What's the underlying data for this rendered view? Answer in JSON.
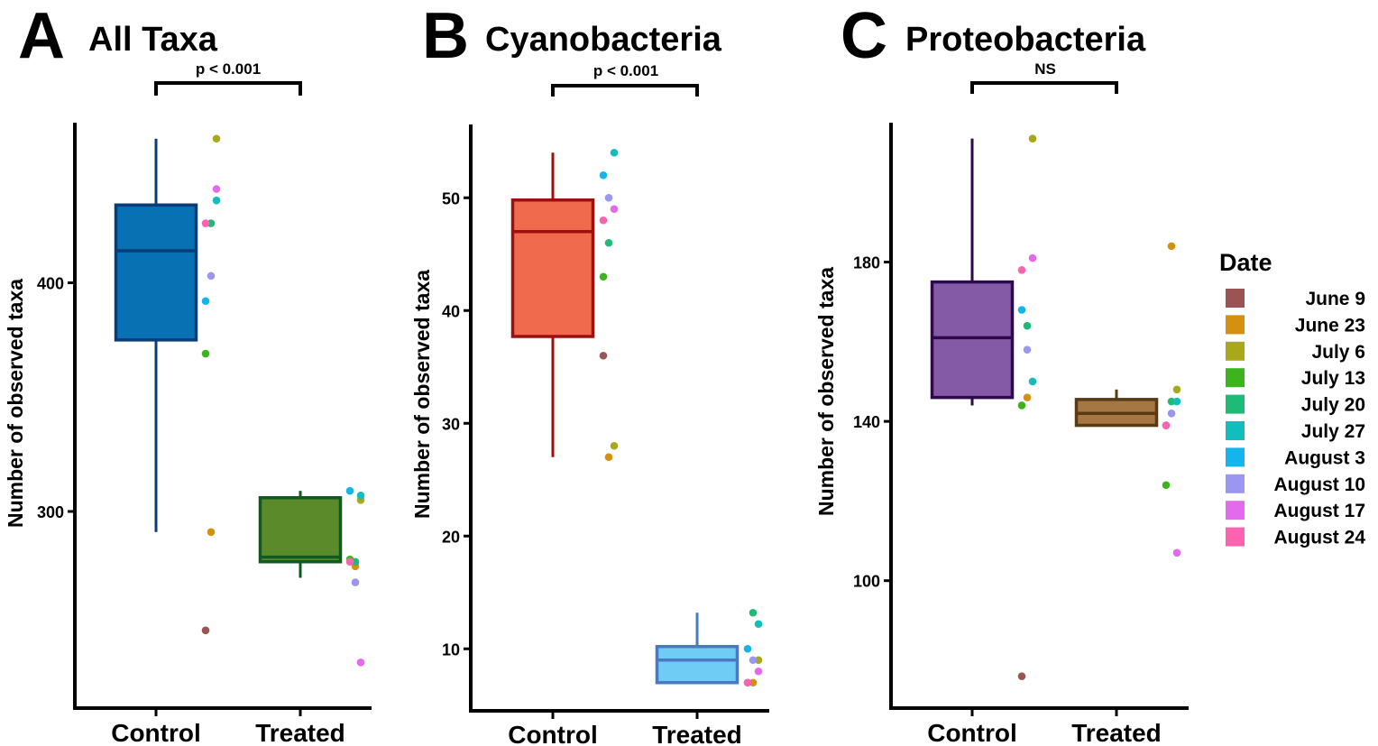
{
  "legend": {
    "title": "Date",
    "items": [
      {
        "label": "June 9",
        "color": "#9B5454"
      },
      {
        "label": "June 23",
        "color": "#D4900E"
      },
      {
        "label": "July 6",
        "color": "#A8A81A"
      },
      {
        "label": "July 13",
        "color": "#3DB41E"
      },
      {
        "label": "July 20",
        "color": "#1EBB76"
      },
      {
        "label": "July 27",
        "color": "#14BDBD"
      },
      {
        "label": "August 3",
        "color": "#14B4EC"
      },
      {
        "label": "August 10",
        "color": "#9B96F0"
      },
      {
        "label": "August 17",
        "color": "#E26BEB"
      },
      {
        "label": "August 24",
        "color": "#FB63B1"
      }
    ]
  },
  "chart_data": [
    {
      "type": "box",
      "panel_letter": "A",
      "title": "All Taxa",
      "ylabel": "Number of observed taxa",
      "ylim": [
        214,
        470
      ],
      "yticks": [
        300,
        400
      ],
      "significance": "p < 0.001",
      "categories": [
        "Control",
        "Treated"
      ],
      "boxes": [
        {
          "category": "Control",
          "fill": "#0871B3",
          "stroke": "#0A3C78",
          "whisker_low": 291,
          "q1": 375,
          "median": 414,
          "q3": 434,
          "whisker_high": 463
        },
        {
          "category": "Treated",
          "fill": "#5B8A2A",
          "stroke": "#0F5A1E",
          "whisker_low": 271,
          "q1": 278,
          "median": 280,
          "q3": 306,
          "whisker_high": 309
        }
      ],
      "points": [
        {
          "category": "Control",
          "date": "June 9",
          "value": 248
        },
        {
          "category": "Control",
          "date": "June 23",
          "value": 291
        },
        {
          "category": "Control",
          "date": "July 6",
          "value": 463
        },
        {
          "category": "Control",
          "date": "July 13",
          "value": 369
        },
        {
          "category": "Control",
          "date": "July 20",
          "value": 426
        },
        {
          "category": "Control",
          "date": "July 27",
          "value": 436
        },
        {
          "category": "Control",
          "date": "August 3",
          "value": 392
        },
        {
          "category": "Control",
          "date": "August 10",
          "value": 403
        },
        {
          "category": "Control",
          "date": "August 17",
          "value": 441
        },
        {
          "category": "Control",
          "date": "August 24",
          "value": 426
        },
        {
          "category": "Treated",
          "date": "June 23",
          "value": 276
        },
        {
          "category": "Treated",
          "date": "July 6",
          "value": 305
        },
        {
          "category": "Treated",
          "date": "July 13",
          "value": 279
        },
        {
          "category": "Treated",
          "date": "July 20",
          "value": 278
        },
        {
          "category": "Treated",
          "date": "July 27",
          "value": 307
        },
        {
          "category": "Treated",
          "date": "August 3",
          "value": 309
        },
        {
          "category": "Treated",
          "date": "August 10",
          "value": 269
        },
        {
          "category": "Treated",
          "date": "August 17",
          "value": 234
        },
        {
          "category": "Treated",
          "date": "August 24",
          "value": 278
        }
      ]
    },
    {
      "type": "box",
      "panel_letter": "B",
      "title": "Cyanobacteria",
      "ylabel": "Number of observed taxa",
      "ylim": [
        4.5,
        56.5
      ],
      "yticks": [
        10,
        20,
        30,
        40,
        50
      ],
      "significance": "p < 0.001",
      "categories": [
        "Control",
        "Treated"
      ],
      "boxes": [
        {
          "category": "Control",
          "fill": "#F06A4E",
          "stroke": "#9E1010",
          "whisker_low": 27,
          "q1": 37.7,
          "median": 47,
          "q3": 49.8,
          "whisker_high": 54
        },
        {
          "category": "Treated",
          "fill": "#6FCCF5",
          "stroke": "#4A78C2",
          "whisker_low": 7,
          "q1": 7,
          "median": 9,
          "q3": 10.2,
          "whisker_high": 13.2
        }
      ],
      "points": [
        {
          "category": "Control",
          "date": "June 9",
          "value": 36
        },
        {
          "category": "Control",
          "date": "June 23",
          "value": 27
        },
        {
          "category": "Control",
          "date": "July 6",
          "value": 28
        },
        {
          "category": "Control",
          "date": "July 13",
          "value": 43
        },
        {
          "category": "Control",
          "date": "July 20",
          "value": 46
        },
        {
          "category": "Control",
          "date": "July 27",
          "value": 54
        },
        {
          "category": "Control",
          "date": "August 3",
          "value": 52
        },
        {
          "category": "Control",
          "date": "August 10",
          "value": 50
        },
        {
          "category": "Control",
          "date": "August 17",
          "value": 49
        },
        {
          "category": "Control",
          "date": "August 24",
          "value": 48
        },
        {
          "category": "Treated",
          "date": "June 23",
          "value": 7
        },
        {
          "category": "Treated",
          "date": "July 6",
          "value": 9
        },
        {
          "category": "Treated",
          "date": "July 13",
          "value": 7
        },
        {
          "category": "Treated",
          "date": "July 20",
          "value": 13.2
        },
        {
          "category": "Treated",
          "date": "July 27",
          "value": 12.2
        },
        {
          "category": "Treated",
          "date": "August 3",
          "value": 10
        },
        {
          "category": "Treated",
          "date": "August 10",
          "value": 9
        },
        {
          "category": "Treated",
          "date": "August 17",
          "value": 8
        },
        {
          "category": "Treated",
          "date": "August 24",
          "value": 7
        }
      ]
    },
    {
      "type": "box",
      "panel_letter": "C",
      "title": "Proteobacteria",
      "ylabel": "Number of observed taxa",
      "ylim": [
        68,
        215
      ],
      "yticks": [
        100,
        140,
        180
      ],
      "significance": "NS",
      "categories": [
        "Control",
        "Treated"
      ],
      "boxes": [
        {
          "category": "Control",
          "fill": "#845AA6",
          "stroke": "#2D0A4B",
          "whisker_low": 144,
          "q1": 146,
          "median": 161,
          "q3": 175,
          "whisker_high": 211
        },
        {
          "category": "Treated",
          "fill": "#A57745",
          "stroke": "#5A3A12",
          "whisker_low": 139,
          "q1": 139,
          "median": 142,
          "q3": 145.5,
          "whisker_high": 148
        }
      ],
      "points": [
        {
          "category": "Control",
          "date": "June 9",
          "value": 76
        },
        {
          "category": "Control",
          "date": "June 23",
          "value": 146
        },
        {
          "category": "Control",
          "date": "July 6",
          "value": 211
        },
        {
          "category": "Control",
          "date": "July 13",
          "value": 144
        },
        {
          "category": "Control",
          "date": "July 20",
          "value": 164
        },
        {
          "category": "Control",
          "date": "July 27",
          "value": 150
        },
        {
          "category": "Control",
          "date": "August 3",
          "value": 168
        },
        {
          "category": "Control",
          "date": "August 10",
          "value": 158
        },
        {
          "category": "Control",
          "date": "August 17",
          "value": 181
        },
        {
          "category": "Control",
          "date": "August 24",
          "value": 178
        },
        {
          "category": "Treated",
          "date": "June 23",
          "value": 184
        },
        {
          "category": "Treated",
          "date": "July 6",
          "value": 148
        },
        {
          "category": "Treated",
          "date": "July 13",
          "value": 124
        },
        {
          "category": "Treated",
          "date": "July 20",
          "value": 145
        },
        {
          "category": "Treated",
          "date": "July 27",
          "value": 145
        },
        {
          "category": "Treated",
          "date": "August 3",
          "value": 139
        },
        {
          "category": "Treated",
          "date": "August 10",
          "value": 142
        },
        {
          "category": "Treated",
          "date": "August 17",
          "value": 107
        },
        {
          "category": "Treated",
          "date": "August 24",
          "value": 139
        }
      ]
    }
  ]
}
